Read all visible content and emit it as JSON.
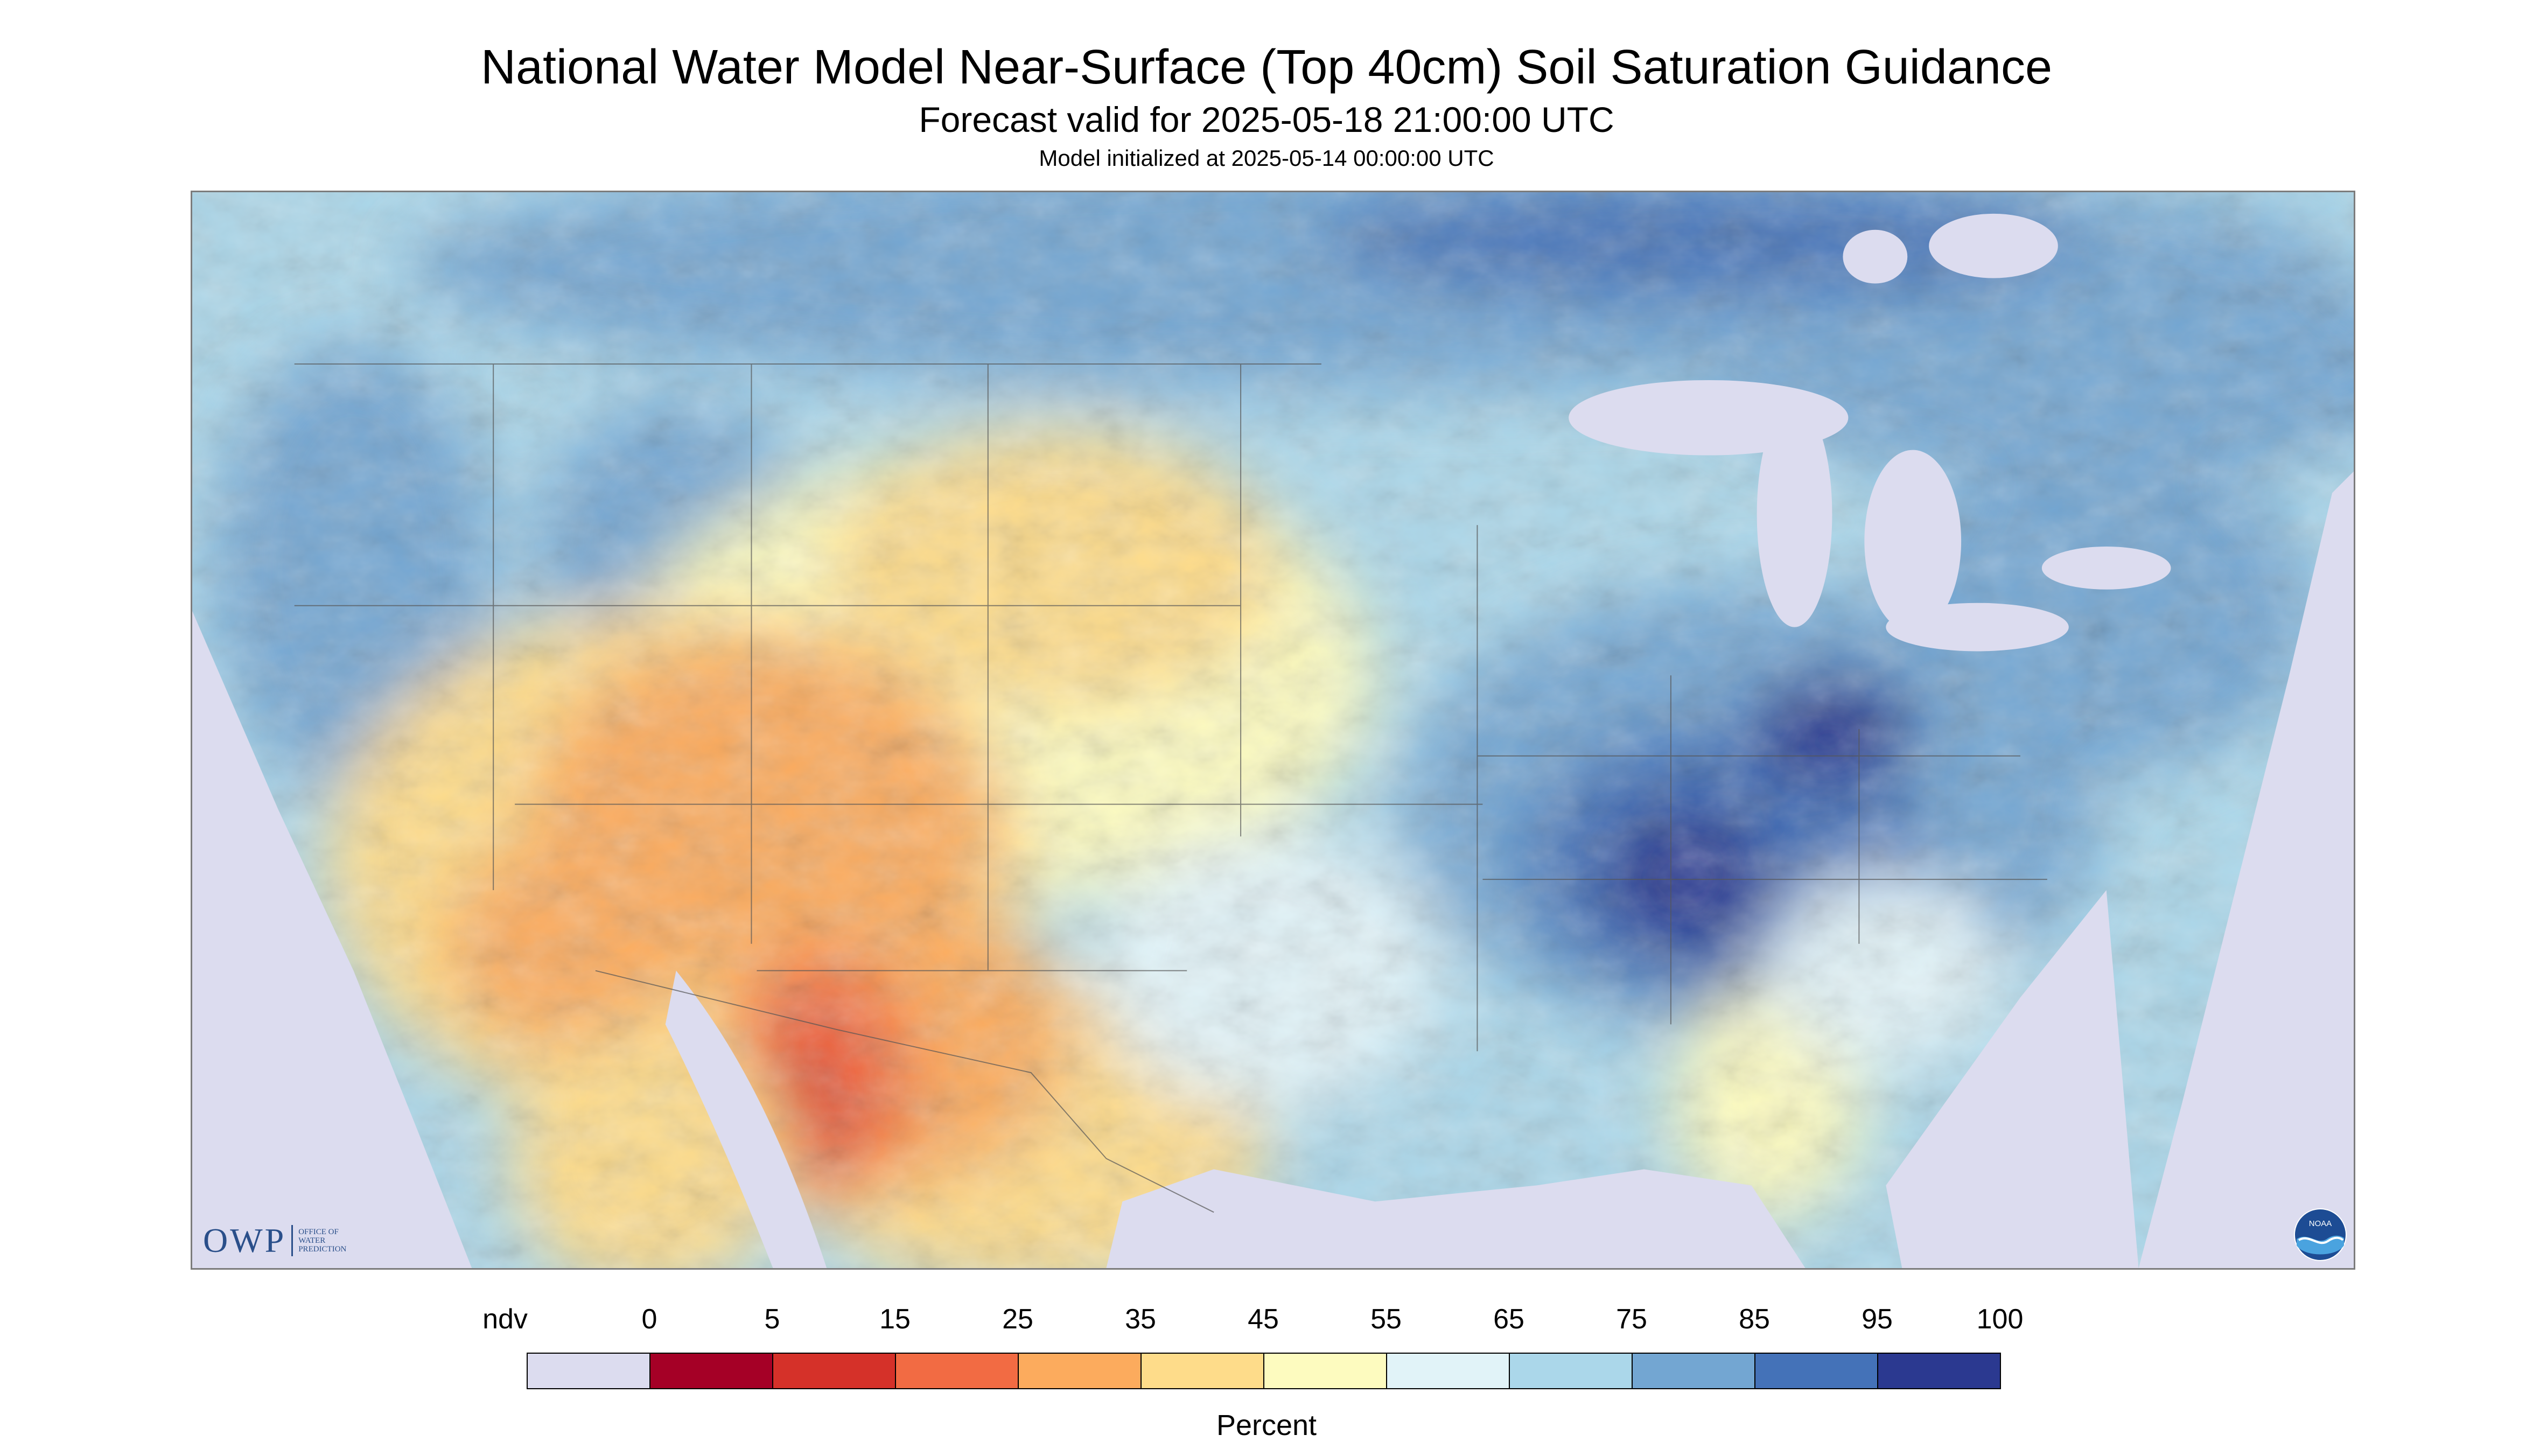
{
  "header": {
    "title": "National Water Model Near-Surface (Top 40cm) Soil Saturation Guidance",
    "subtitle": "Forecast valid for 2025-05-18 21:00:00 UTC",
    "init_line": "Model initialized at 2025-05-14 00:00:00 UTC"
  },
  "map": {
    "background_color": "#dcdcef",
    "land_regions": [
      {
        "level": "95",
        "color": "#2b3990"
      },
      {
        "level": "85",
        "color": "#4472b8"
      },
      {
        "level": "75",
        "color": "#73a6d2"
      },
      {
        "level": "65",
        "color": "#abd7ea"
      },
      {
        "level": "55",
        "color": "#e1f3f8"
      },
      {
        "level": "45",
        "color": "#fdfbbf"
      },
      {
        "level": "35",
        "color": "#fedc8a"
      },
      {
        "level": "25",
        "color": "#fcab5d"
      },
      {
        "level": "15",
        "color": "#f26b43"
      },
      {
        "level": "5",
        "color": "#d53129"
      },
      {
        "level": "0",
        "color": "#a50026"
      }
    ]
  },
  "logos": {
    "owp_text": "OWP",
    "owp_sub": [
      "OFFICE OF",
      "WATER",
      "PREDICTION"
    ],
    "noaa_text": "NOAA"
  },
  "legend": {
    "items": [
      {
        "label": "ndv",
        "color": "#dcdcef"
      },
      {
        "label": "0",
        "color": "#a50026"
      },
      {
        "label": "5",
        "color": "#d53129"
      },
      {
        "label": "15",
        "color": "#f26b43"
      },
      {
        "label": "25",
        "color": "#fcab5d"
      },
      {
        "label": "35",
        "color": "#fedc8a"
      },
      {
        "label": "45",
        "color": "#fdfbbf"
      },
      {
        "label": "55",
        "color": "#e1f3f8"
      },
      {
        "label": "65",
        "color": "#abd7ea"
      },
      {
        "label": "75",
        "color": "#73a6d2"
      },
      {
        "label": "85",
        "color": "#4472b8"
      },
      {
        "label": "95",
        "color": "#2b3990"
      }
    ],
    "end_label": "100",
    "unit": "Percent"
  }
}
